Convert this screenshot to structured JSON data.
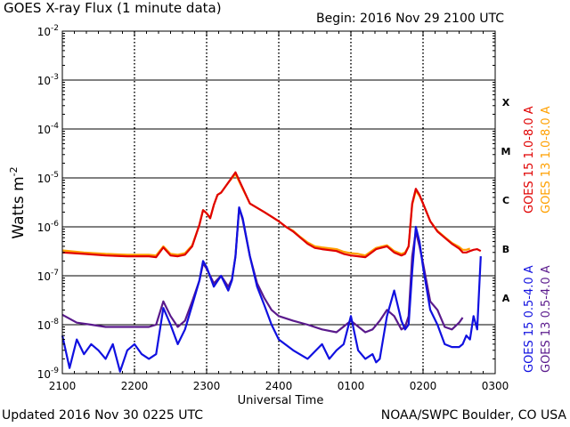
{
  "header": {
    "title": "GOES X-ray Flux (1 minute data)",
    "begin": "Begin: 2016 Nov 29 2100 UTC"
  },
  "footer": {
    "updated": "Updated 2016 Nov 30 0225 UTC",
    "source": "NOAA/SWPC Boulder, CO USA"
  },
  "chart_data": {
    "type": "line",
    "title": "GOES X-ray Flux (1 minute data)",
    "xlabel": "Universal Time",
    "ylabel": "Watts m",
    "ylabel_sup": "-2",
    "x_unit": "hours since 2016-11-29 2100 UTC",
    "xlim": [
      0,
      6
    ],
    "ylim": [
      1e-09,
      0.01
    ],
    "yscale": "log",
    "grid": true,
    "x_ticks": [
      "2100",
      "2200",
      "2300",
      "2400",
      "0100",
      "0200",
      "0300"
    ],
    "y_ticks": [
      {
        "base": "10",
        "exp": "-9",
        "value": 1e-09
      },
      {
        "base": "10",
        "exp": "-8",
        "value": 1e-08
      },
      {
        "base": "10",
        "exp": "-7",
        "value": 1e-07
      },
      {
        "base": "10",
        "exp": "-6",
        "value": 1e-06
      },
      {
        "base": "10",
        "exp": "-5",
        "value": 1e-05
      },
      {
        "base": "10",
        "exp": "-4",
        "value": 0.0001
      },
      {
        "base": "10",
        "exp": "-3",
        "value": 0.001
      },
      {
        "base": "10",
        "exp": "-2",
        "value": 0.01
      }
    ],
    "flare_classes": [
      {
        "label": "A",
        "value": 1e-08
      },
      {
        "label": "B",
        "value": 1e-07
      },
      {
        "label": "C",
        "value": 1e-06
      },
      {
        "label": "M",
        "value": 1e-05
      },
      {
        "label": "X",
        "value": 0.0001
      }
    ],
    "legend_position": "right",
    "series": [
      {
        "name": "GOES 15 1.0-8.0 A",
        "color": "#e00000",
        "x": [
          0.0,
          0.3,
          0.6,
          0.9,
          1.2,
          1.3,
          1.4,
          1.5,
          1.6,
          1.7,
          1.8,
          1.9,
          1.95,
          2.0,
          2.05,
          2.1,
          2.15,
          2.2,
          2.3,
          2.4,
          2.6,
          2.8,
          3.0,
          3.1,
          3.2,
          3.3,
          3.4,
          3.5,
          3.6,
          3.8,
          3.85,
          3.9,
          3.95,
          4.0,
          4.1,
          4.2,
          4.35,
          4.5,
          4.6,
          4.7,
          4.75,
          4.8,
          4.85,
          4.9,
          4.95,
          5.0,
          5.1,
          5.2,
          5.3,
          5.4,
          5.5,
          5.55,
          5.6,
          5.65,
          5.7,
          5.75,
          5.8
        ],
        "values": [
          3e-07,
          2.8e-07,
          2.6e-07,
          2.5e-07,
          2.5e-07,
          2.4e-07,
          3.8e-07,
          2.6e-07,
          2.5e-07,
          2.7e-07,
          4e-07,
          1.1e-06,
          2.2e-06,
          1.9e-06,
          1.5e-06,
          2.8e-06,
          4.5e-06,
          5e-06,
          8e-06,
          1.3e-05,
          3e-06,
          2e-06,
          1.3e-06,
          1e-06,
          8e-07,
          6e-07,
          4.5e-07,
          3.7e-07,
          3.5e-07,
          3.2e-07,
          3e-07,
          2.8e-07,
          2.7e-07,
          2.6e-07,
          2.5e-07,
          2.4e-07,
          3.5e-07,
          4e-07,
          3e-07,
          2.6e-07,
          2.8e-07,
          4e-07,
          3e-06,
          6e-06,
          4.5e-06,
          3e-06,
          1.3e-06,
          8e-07,
          6e-07,
          4.5e-07,
          3.6e-07,
          3e-07,
          3e-07,
          3.2e-07,
          3.4e-07,
          3.5e-07,
          3.2e-07
        ]
      },
      {
        "name": "GOES 13 1.0-8.0 A",
        "color": "#ffa000",
        "x": [
          0.0,
          0.3,
          0.6,
          0.9,
          1.2,
          1.3,
          1.4,
          1.5,
          1.6,
          1.7,
          1.8,
          1.9,
          1.95,
          2.0,
          2.05,
          2.1,
          2.15,
          2.2,
          2.3,
          2.4,
          2.6,
          2.8,
          3.0,
          3.1,
          3.2,
          3.3,
          3.4,
          3.5,
          3.6,
          3.8,
          3.85,
          3.9,
          3.95,
          4.0,
          4.1,
          4.2,
          4.35,
          4.5,
          4.6,
          4.7,
          4.75,
          4.8,
          4.85,
          4.9,
          4.95,
          5.0,
          5.1,
          5.2,
          5.3,
          5.4,
          5.5,
          5.55,
          5.6,
          5.65
        ],
        "values": [
          3.3e-07,
          3e-07,
          2.8e-07,
          2.7e-07,
          2.7e-07,
          2.6e-07,
          4e-07,
          2.8e-07,
          2.7e-07,
          2.9e-07,
          4.2e-07,
          1.1e-06,
          2.2e-06,
          1.9e-06,
          1.5e-06,
          2.8e-06,
          4.5e-06,
          5e-06,
          8e-06,
          1.2e-05,
          3e-06,
          2e-06,
          1.3e-06,
          1e-06,
          8.3e-07,
          6.2e-07,
          4.8e-07,
          4e-07,
          3.8e-07,
          3.5e-07,
          3.3e-07,
          3.1e-07,
          3e-07,
          2.9e-07,
          2.8e-07,
          2.6e-07,
          3.7e-07,
          4.2e-07,
          3.2e-07,
          2.8e-07,
          3e-07,
          4e-07,
          2.8e-06,
          5.5e-06,
          4.3e-06,
          3e-06,
          1.3e-06,
          8.3e-07,
          6.2e-07,
          4.7e-07,
          3.9e-07,
          3.4e-07,
          3.4e-07,
          3.6e-07
        ]
      },
      {
        "name": "GOES 15 0.5-4.0 A",
        "color": "#1010e0",
        "x": [
          0.0,
          0.1,
          0.2,
          0.3,
          0.4,
          0.5,
          0.6,
          0.7,
          0.8,
          0.9,
          1.0,
          1.1,
          1.2,
          1.3,
          1.4,
          1.5,
          1.6,
          1.7,
          1.8,
          1.9,
          1.95,
          2.0,
          2.1,
          2.2,
          2.3,
          2.35,
          2.4,
          2.45,
          2.5,
          2.6,
          2.7,
          2.8,
          2.9,
          3.0,
          3.2,
          3.4,
          3.6,
          3.7,
          3.8,
          3.9,
          4.0,
          4.1,
          4.2,
          4.3,
          4.35,
          4.4,
          4.5,
          4.6,
          4.7,
          4.75,
          4.8,
          4.85,
          4.9,
          4.95,
          5.0,
          5.1,
          5.2,
          5.3,
          5.4,
          5.5,
          5.55,
          5.6,
          5.65,
          5.7,
          5.75,
          5.8
        ],
        "values": [
          6e-09,
          1.3e-09,
          5e-09,
          2.5e-09,
          4e-09,
          3e-09,
          2e-09,
          4e-09,
          1.1e-09,
          3e-09,
          4e-09,
          2.5e-09,
          2e-09,
          2.5e-09,
          2.2e-08,
          1e-08,
          4e-09,
          8e-09,
          2.5e-08,
          8e-08,
          2e-07,
          1.5e-07,
          6e-08,
          1e-07,
          5e-08,
          8e-08,
          2.5e-07,
          2.5e-06,
          1.5e-06,
          2.5e-07,
          6e-08,
          2.5e-08,
          1e-08,
          5e-09,
          3e-09,
          2e-09,
          4e-09,
          2e-09,
          3e-09,
          4e-09,
          1.5e-08,
          3e-09,
          2e-09,
          2.5e-09,
          1.7e-09,
          2e-09,
          1.5e-08,
          5e-08,
          1.2e-08,
          8e-09,
          1e-08,
          1.2e-07,
          1e-06,
          5e-07,
          1.5e-07,
          2e-08,
          1e-08,
          4e-09,
          3.5e-09,
          3.5e-09,
          4e-09,
          6e-09,
          5e-09,
          1.5e-08,
          8e-09,
          2.5e-07
        ]
      },
      {
        "name": "GOES 13 0.5-4.0 A",
        "color": "#5a1a8c",
        "x": [
          0.0,
          0.2,
          0.4,
          0.6,
          0.8,
          1.0,
          1.2,
          1.3,
          1.4,
          1.5,
          1.6,
          1.7,
          1.8,
          1.9,
          1.95,
          2.0,
          2.1,
          2.2,
          2.3,
          2.35,
          2.4,
          2.45,
          2.5,
          2.6,
          2.7,
          2.8,
          2.9,
          3.0,
          3.2,
          3.4,
          3.6,
          3.8,
          4.0,
          4.2,
          4.3,
          4.4,
          4.5,
          4.6,
          4.7,
          4.75,
          4.8,
          4.85,
          4.9,
          4.95,
          5.0,
          5.1,
          5.2,
          5.3,
          5.4,
          5.5,
          5.55
        ],
        "values": [
          1.6e-08,
          1.1e-08,
          1e-08,
          9e-09,
          9e-09,
          9e-09,
          9e-09,
          1e-08,
          3e-08,
          1.5e-08,
          9e-09,
          1.2e-08,
          3e-08,
          8e-08,
          1.8e-07,
          1.4e-07,
          7e-08,
          1e-07,
          6e-08,
          8.5e-08,
          2.5e-07,
          2.4e-06,
          1.4e-06,
          2.5e-07,
          7e-08,
          3.5e-08,
          2e-08,
          1.5e-08,
          1.2e-08,
          1e-08,
          8e-09,
          7e-09,
          1.2e-08,
          7e-09,
          8e-09,
          1.2e-08,
          2e-08,
          1.5e-08,
          8e-09,
          9e-09,
          1.5e-08,
          2.5e-07,
          8e-07,
          4e-07,
          1.8e-07,
          3e-08,
          2e-08,
          9e-09,
          8e-09,
          1.1e-08,
          1.4e-08
        ]
      }
    ]
  }
}
